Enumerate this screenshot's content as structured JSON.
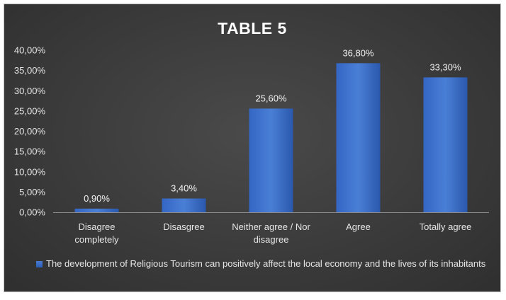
{
  "chart_data": {
    "type": "bar",
    "title": "TABLE 5",
    "categories": [
      "Disagree completely",
      "Disasgree",
      "Neither agree / Nor disagree",
      "Agree",
      "Totally agree"
    ],
    "category_lines": [
      [
        "Disagree",
        "completely"
      ],
      [
        "Disasgree"
      ],
      [
        "Neither agree / Nor",
        "disagree"
      ],
      [
        "Agree"
      ],
      [
        "Totally agree"
      ]
    ],
    "series": [
      {
        "name": "The development of Religious Tourism can positively affect the local economy and the lives of its inhabitants",
        "values": [
          0.9,
          3.4,
          25.6,
          36.8,
          33.3
        ],
        "labels": [
          "0,90%",
          "3,40%",
          "25,60%",
          "36,80%",
          "33,30%"
        ],
        "color": "#2f62c0"
      }
    ],
    "ylim": [
      0,
      40
    ],
    "yticks": [
      0,
      5,
      10,
      15,
      20,
      25,
      30,
      35,
      40
    ],
    "ytick_labels": [
      "0,00%",
      "5,00%",
      "10,00%",
      "15,00%",
      "20,00%",
      "25,00%",
      "30,00%",
      "35,00%",
      "40,00%"
    ],
    "xlabel": "",
    "ylabel": "",
    "grid": false,
    "legend_position": "bottom",
    "background": "#3b3b3b",
    "text_color": "#e6e6e6"
  },
  "legend": {
    "text": "The development of Religious Tourism can positively affect the local economy and the lives of its inhabitants"
  }
}
